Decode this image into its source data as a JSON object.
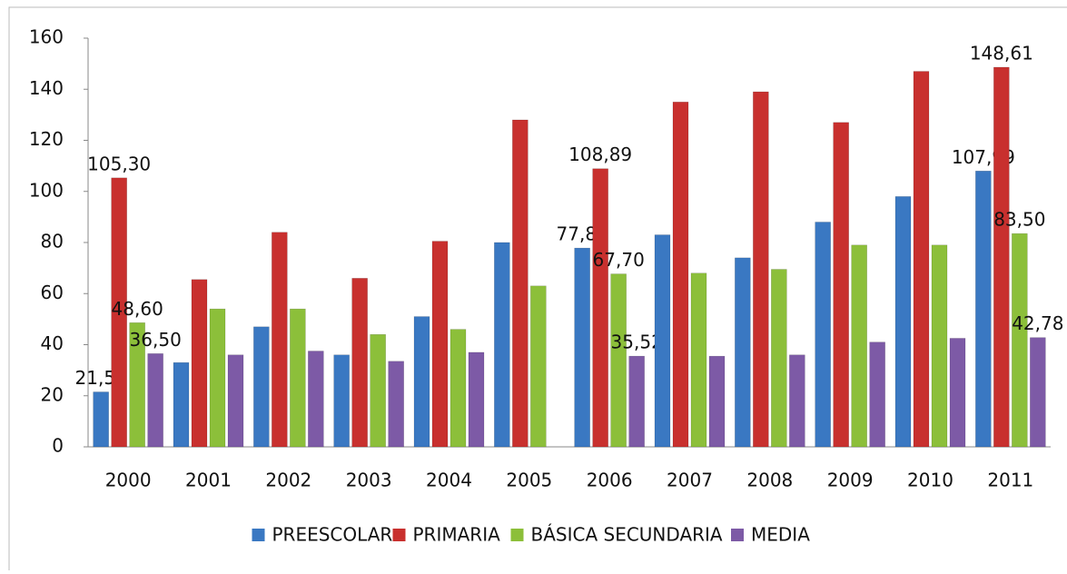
{
  "chart_data": {
    "type": "bar",
    "categories": [
      "2000",
      "2001",
      "2002",
      "2003",
      "2004",
      "2005",
      "2006",
      "2007",
      "2008",
      "2009",
      "2010",
      "2011"
    ],
    "series": [
      {
        "name": "PREESCOLAR",
        "color": "#3a78c2",
        "values": [
          21.5,
          33,
          47,
          36,
          51,
          80,
          77.83,
          83,
          74,
          88,
          98,
          107.99
        ],
        "value_labels": [
          "21,50",
          null,
          null,
          null,
          null,
          null,
          "77,83",
          null,
          null,
          null,
          null,
          "107,99"
        ]
      },
      {
        "name": "PRIMARIA",
        "color": "#c8302e",
        "values": [
          105.3,
          65.5,
          84,
          66,
          80.5,
          128,
          108.89,
          135,
          139,
          127,
          147,
          148.61
        ],
        "value_labels": [
          "105,30",
          null,
          null,
          null,
          null,
          null,
          "108,89",
          null,
          null,
          null,
          null,
          "148,61"
        ]
      },
      {
        "name": "BÁSICA SECUNDARIA",
        "color": "#8cbf3a",
        "values": [
          48.6,
          54,
          54,
          44,
          46,
          63,
          67.7,
          68,
          69.5,
          79,
          79,
          83.5
        ],
        "value_labels": [
          "48,60",
          null,
          null,
          null,
          null,
          null,
          "67,70",
          null,
          null,
          null,
          null,
          "83,50"
        ]
      },
      {
        "name": "MEDIA",
        "color": "#7d5aa6",
        "values": [
          36.5,
          36,
          37.5,
          33.5,
          37,
          null,
          35.52,
          35.5,
          36,
          41,
          42.5,
          42.78
        ],
        "value_labels": [
          "36,50",
          null,
          null,
          null,
          null,
          null,
          "35,52",
          null,
          null,
          null,
          null,
          "42,78"
        ]
      }
    ],
    "ylim": [
      0,
      160
    ],
    "yticks": [
      0,
      20,
      40,
      60,
      80,
      100,
      120,
      140,
      160
    ],
    "grid": false,
    "legend": "bottom"
  }
}
